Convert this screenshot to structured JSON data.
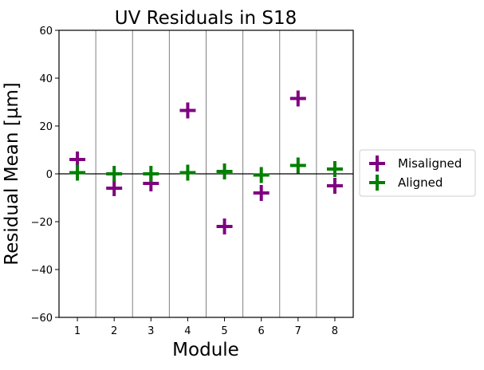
{
  "chart_data": {
    "type": "scatter",
    "title": "UV Residuals in S18",
    "xlabel": "Module",
    "ylabel": "Residual Mean [µm]",
    "x": [
      1,
      2,
      3,
      4,
      5,
      6,
      7,
      8
    ],
    "xlim": [
      0.5,
      8.5
    ],
    "ylim": [
      -60,
      60
    ],
    "xticks": [
      "1",
      "2",
      "3",
      "4",
      "5",
      "6",
      "7",
      "8"
    ],
    "yticks": [
      -60,
      -40,
      -20,
      0,
      20,
      40,
      60
    ],
    "ytick_labels": [
      "−60",
      "−40",
      "−20",
      "0",
      "20",
      "40",
      "60"
    ],
    "zero_line": 0,
    "legend_placement": "outside-right",
    "series": [
      {
        "name": "Misaligned",
        "color": "#800080",
        "marker": "plus",
        "values": [
          6,
          -6,
          -4,
          26.5,
          -22,
          -8,
          31.5,
          -5
        ]
      },
      {
        "name": "Aligned",
        "color": "#008000",
        "marker": "plus",
        "values": [
          0.5,
          0,
          0,
          0.5,
          1,
          -0.5,
          3.5,
          2
        ]
      }
    ]
  }
}
